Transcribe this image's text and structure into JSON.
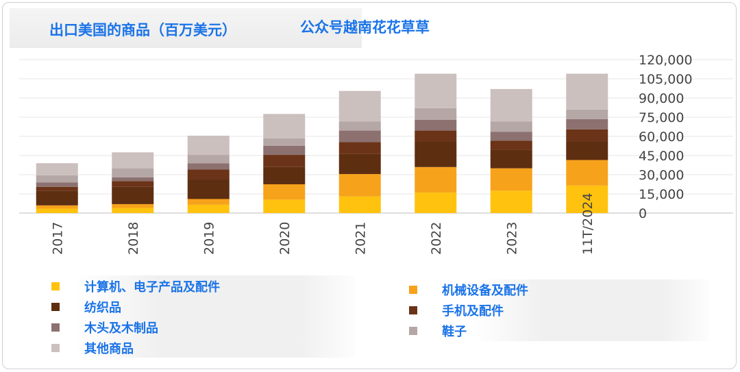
{
  "header": {
    "title": "出口美国的商品（百万美元）",
    "subtitle": "公众号越南花花草草"
  },
  "chart_data": {
    "type": "bar",
    "stacked": true,
    "categories": [
      "2017",
      "2018",
      "2019",
      "2020",
      "2021",
      "2022",
      "2023",
      "11T/2024"
    ],
    "ylim": [
      0,
      120000
    ],
    "yticks": [
      "120,000",
      "105,000",
      "90,000",
      "75,000",
      "60,000",
      "45,000",
      "30,000",
      "15,000",
      "0"
    ],
    "ytick_values": [
      120000,
      105000,
      90000,
      75000,
      60000,
      45000,
      30000,
      15000,
      0
    ],
    "legend_placement": "bottom",
    "grid": true,
    "series": [
      {
        "name": "计算机、电子产品及配件",
        "color": "#ffc20e",
        "values": [
          3500,
          4000,
          6500,
          10500,
          13000,
          16000,
          17500,
          21500
        ]
      },
      {
        "name": "机械设备及配件",
        "color": "#f7a21b",
        "values": [
          2500,
          3000,
          4500,
          12000,
          17500,
          20000,
          17500,
          20000
        ]
      },
      {
        "name": "纺织品",
        "color": "#5e2e11",
        "values": [
          11500,
          13500,
          15500,
          13500,
          16000,
          20000,
          14500,
          14500
        ]
      },
      {
        "name": "手机及配件",
        "color": "#6b3317",
        "values": [
          3000,
          4500,
          7500,
          9500,
          9000,
          8500,
          7000,
          9500
        ]
      },
      {
        "name": "木头及木制品",
        "color": "#8c7170",
        "values": [
          3500,
          3000,
          5000,
          7000,
          9000,
          8500,
          7000,
          8000
        ]
      },
      {
        "name": "鞋子",
        "color": "#b5a7a5",
        "values": [
          5500,
          7000,
          6500,
          6000,
          7000,
          9000,
          8000,
          7500
        ]
      },
      {
        "name": "其他商品",
        "color": "#cbc0be",
        "values": [
          9500,
          12500,
          15000,
          19000,
          24000,
          27000,
          25500,
          28000
        ]
      }
    ]
  },
  "legend": {
    "left": [
      {
        "label": "计算机、电子产品及配件",
        "color": "#ffc20e"
      },
      {
        "label": "纺织品",
        "color": "#5e2e11"
      },
      {
        "label": "木头及木制品",
        "color": "#8c7170"
      },
      {
        "label": "其他商品",
        "color": "#cbc0be"
      }
    ],
    "right": [
      {
        "label": "机械设备及配件",
        "color": "#f7a21b"
      },
      {
        "label": "手机及配件",
        "color": "#6b3317"
      },
      {
        "label": "鞋子",
        "color": "#b5a7a5"
      }
    ]
  }
}
